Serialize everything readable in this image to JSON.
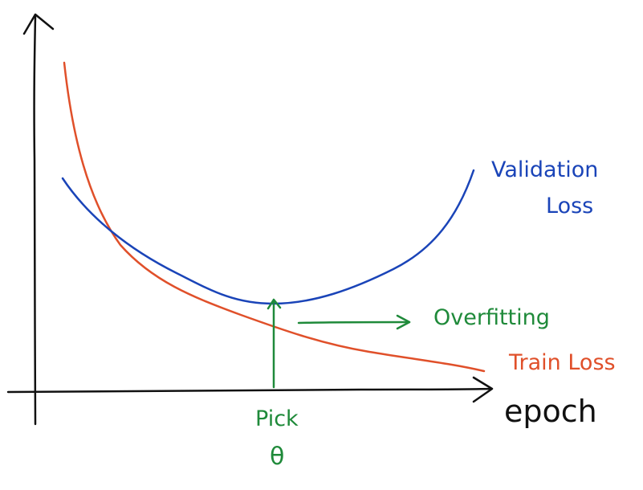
{
  "labels": {
    "validation_line1": "Validation",
    "validation_line2": "Loss",
    "train": "Train Loss",
    "overfitting": "Overfitting",
    "xaxis": "epoch",
    "pick_line1": "Pick",
    "pick_line2": "θ"
  },
  "colors": {
    "axis": "#111111",
    "validation": "#1a44b8",
    "train": "#e0502a",
    "annotation": "#1f8a3a"
  }
}
